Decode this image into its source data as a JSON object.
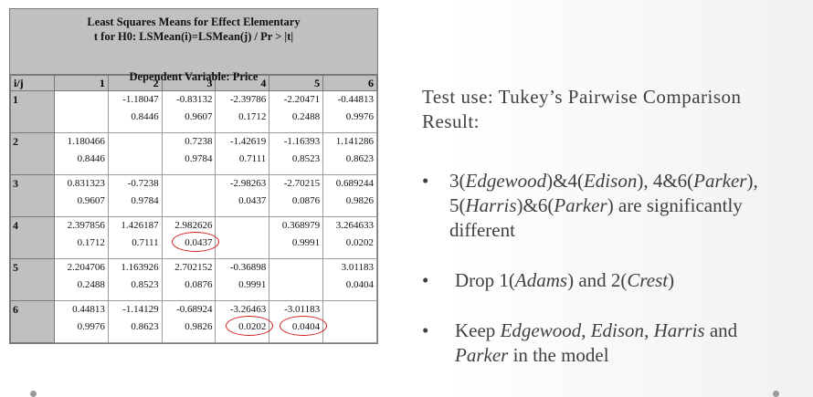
{
  "table": {
    "title_line1": "Least Squares Means for Effect Elementary",
    "title_line2": "t for H0: LSMean(i)=LSMean(j) / Pr > |t|",
    "dependent_variable": "Dependent Variable: Price",
    "corner_header": "i/j",
    "col_headers": [
      "1",
      "2",
      "3",
      "4",
      "5",
      "6"
    ],
    "rows": [
      {
        "label": "1",
        "cells": [
          {
            "t": "",
            "p": ""
          },
          {
            "t": "-1.18047",
            "p": "0.8446"
          },
          {
            "t": "-0.83132",
            "p": "0.9607"
          },
          {
            "t": "-2.39786",
            "p": "0.1712"
          },
          {
            "t": "-2.20471",
            "p": "0.2488"
          },
          {
            "t": "-0.44813",
            "p": "0.9976"
          }
        ]
      },
      {
        "label": "2",
        "cells": [
          {
            "t": "1.180466",
            "p": "0.8446"
          },
          {
            "t": "",
            "p": ""
          },
          {
            "t": "0.7238",
            "p": "0.9784"
          },
          {
            "t": "-1.42619",
            "p": "0.7111"
          },
          {
            "t": "-1.16393",
            "p": "0.8523"
          },
          {
            "t": "1.141286",
            "p": "0.8623"
          }
        ]
      },
      {
        "label": "3",
        "cells": [
          {
            "t": "0.831323",
            "p": "0.9607"
          },
          {
            "t": "-0.7238",
            "p": "0.9784"
          },
          {
            "t": "",
            "p": ""
          },
          {
            "t": "-2.98263",
            "p": "0.0437"
          },
          {
            "t": "-2.70215",
            "p": "0.0876"
          },
          {
            "t": "0.689244",
            "p": "0.9826"
          }
        ]
      },
      {
        "label": "4",
        "cells": [
          {
            "t": "2.397856",
            "p": "0.1712"
          },
          {
            "t": "1.426187",
            "p": "0.7111"
          },
          {
            "t": "2.982626",
            "p": "0.0437",
            "circled": true
          },
          {
            "t": "",
            "p": ""
          },
          {
            "t": "0.368979",
            "p": "0.9991"
          },
          {
            "t": "3.264633",
            "p": "0.0202"
          }
        ]
      },
      {
        "label": "5",
        "cells": [
          {
            "t": "2.204706",
            "p": "0.2488"
          },
          {
            "t": "1.163926",
            "p": "0.8523"
          },
          {
            "t": "2.702152",
            "p": "0.0876"
          },
          {
            "t": "-0.36898",
            "p": "0.9991"
          },
          {
            "t": "",
            "p": ""
          },
          {
            "t": "3.01183",
            "p": "0.0404"
          }
        ]
      },
      {
        "label": "6",
        "cells": [
          {
            "t": "0.44813",
            "p": "0.9976"
          },
          {
            "t": "-1.14129",
            "p": "0.8623"
          },
          {
            "t": "-0.68924",
            "p": "0.9826"
          },
          {
            "t": "-3.26463",
            "p": "0.0202",
            "circled": true
          },
          {
            "t": "-3.01183",
            "p": "0.0404",
            "circled": true
          },
          {
            "t": "",
            "p": ""
          }
        ]
      }
    ],
    "circle_color": "#d21f1f"
  },
  "side": {
    "heading_line1": "Test use:  Tukey’s Pairwise Comparison",
    "heading_line2": "Result:",
    "bullet_char": "•",
    "b1": {
      "p1": "3(",
      "i1": "Edgewood",
      "p2": ")&4(",
      "i2": "Edison",
      "p3": "), 4&6(",
      "i3": "Parker",
      "p4": "),",
      "p5": "5(",
      "i4": "Harris",
      "p6": ")&6(",
      "i5": "Parker",
      "p7": ") are significantly",
      "p8": "different"
    },
    "b2": {
      "p1": "Drop 1(",
      "i1": "Adams",
      "p2": ") and 2(",
      "i2": "Crest",
      "p3": ")"
    },
    "b3": {
      "p1": "Keep ",
      "i1": "Edgewood",
      "p2": ", ",
      "i2": "Edison",
      "p3": ", ",
      "i3": "Harris",
      "p4": " and",
      "i4": "Parker",
      "p5": " in the model"
    }
  }
}
